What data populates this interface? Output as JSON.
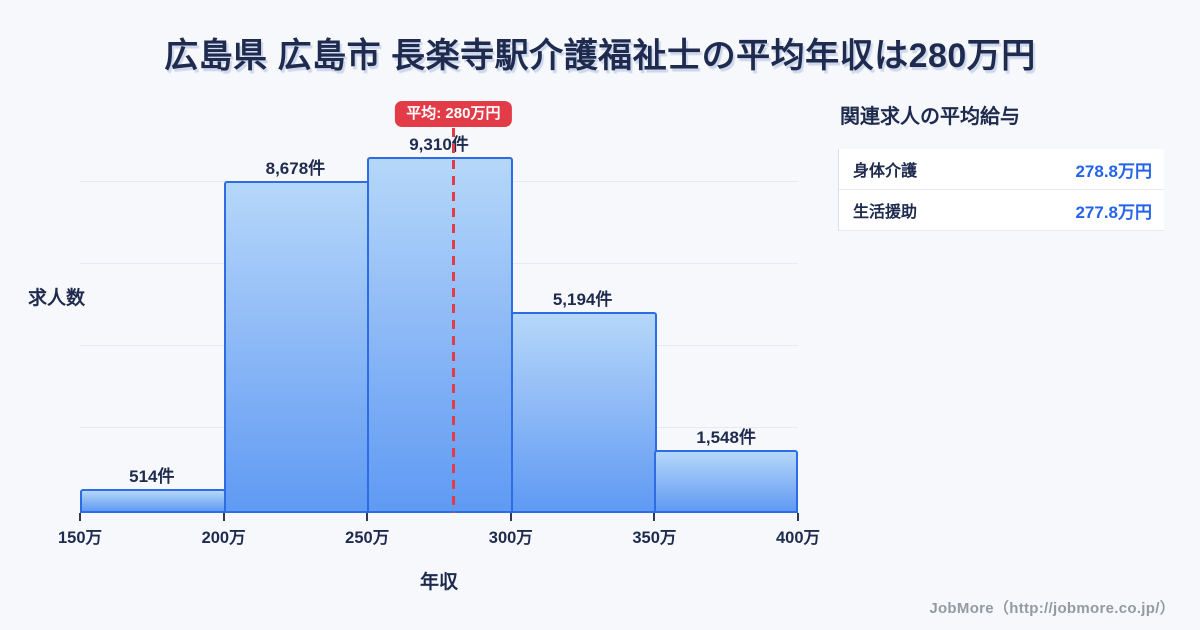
{
  "page": {
    "title": "広島県 広島市 長楽寺駅介護福祉士の平均年収は280万円",
    "footer_credit": "JobMore（http://jobmore.co.jp/）"
  },
  "chart_data": {
    "type": "bar",
    "title": "広島県 広島市 長楽寺駅介護福祉士の平均年収は280万円",
    "xlabel": "年収",
    "ylabel": "求人数",
    "categories": [
      "150万-200万",
      "200万-250万",
      "250万-300万",
      "300万-350万",
      "350万-400万"
    ],
    "values": [
      514,
      8678,
      9310,
      5194,
      1548
    ],
    "bar_labels": [
      "514件",
      "8,678件",
      "9,310件",
      "5,194件",
      "1,548件"
    ],
    "x_tick_labels": [
      "150万",
      "200万",
      "250万",
      "300万",
      "350万",
      "400万"
    ],
    "x_range": [
      150,
      400
    ],
    "ylim": [
      0,
      9800
    ],
    "grid": true,
    "legend": false,
    "average": {
      "value": 280,
      "label": "平均: 280万円"
    }
  },
  "side_panel": {
    "title": "関連求人の平均給与",
    "rows": [
      {
        "label": "身体介護",
        "value": "278.8万円"
      },
      {
        "label": "生活援助",
        "value": "277.8万円"
      }
    ]
  },
  "colors": {
    "background": "#f7f8fb",
    "title_navy": "#1e2b4e",
    "bar_border": "#2d6ce5",
    "bar_fill_top": "#b5d7f9",
    "bar_fill_bottom": "#5f9af3",
    "accent_red": "#e23c49",
    "value_blue": "#2563eb",
    "gridline": "#e7e9f1",
    "footer_gray": "#9599a4"
  }
}
